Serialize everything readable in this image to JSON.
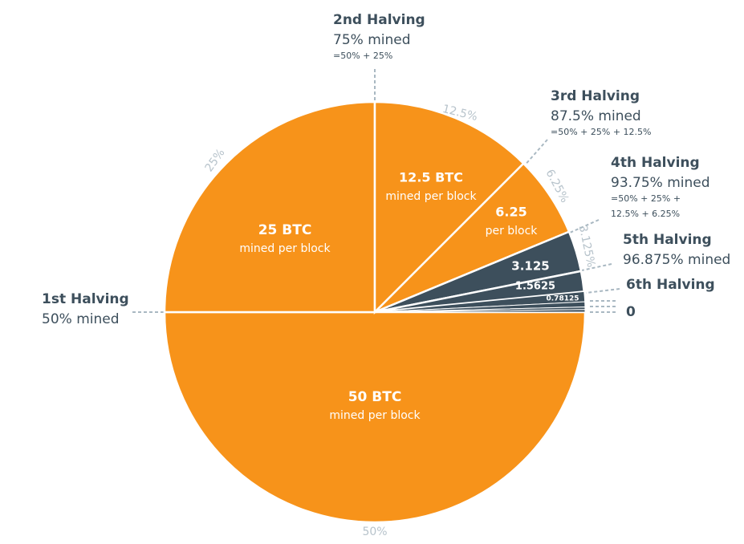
{
  "chart_data": {
    "type": "pie",
    "values": [
      50,
      25,
      12.5,
      6.25,
      3.125,
      1.5625,
      0.78125,
      0.390625,
      0.1953125,
      0.1953125
    ],
    "value_labels": [
      "50%",
      "25%",
      "12.5%",
      "6.25%",
      "3.125%",
      null,
      null,
      null,
      null,
      null
    ],
    "colors": [
      "#f7931a",
      "#f7931a",
      "#f7931a",
      "#f7931a",
      "#3d4f5c",
      "#3d4f5c",
      "#3d4f5c",
      "#3d4f5c",
      "#3d4f5c",
      "#3d4f5c"
    ],
    "inner_labels": [
      [
        "50 BTC",
        "mined per block"
      ],
      [
        "25 BTC",
        "mined per block"
      ],
      [
        "12.5 BTC",
        "mined per block"
      ],
      [
        "6.25",
        "per block"
      ],
      [
        "3.125"
      ],
      [
        "1.5625"
      ],
      [
        "0.78125"
      ]
    ],
    "annotations": [
      {
        "title": "1st Halving",
        "mined": "50% mined"
      },
      {
        "title": "2nd Halving",
        "mined": "75% mined",
        "formula": [
          "=50% + 25%"
        ]
      },
      {
        "title": "3rd Halving",
        "mined": "87.5% mined",
        "formula": [
          "=50% + 25% + 12.5%"
        ]
      },
      {
        "title": "4th Halving",
        "mined": "93.75% mined",
        "formula": [
          "=50% + 25% +",
          "12.5% + 6.25%"
        ]
      },
      {
        "title": "5th Halving",
        "mined": "96.875% mined"
      },
      {
        "title": "6th Halving"
      },
      {
        "title": "0"
      }
    ]
  }
}
